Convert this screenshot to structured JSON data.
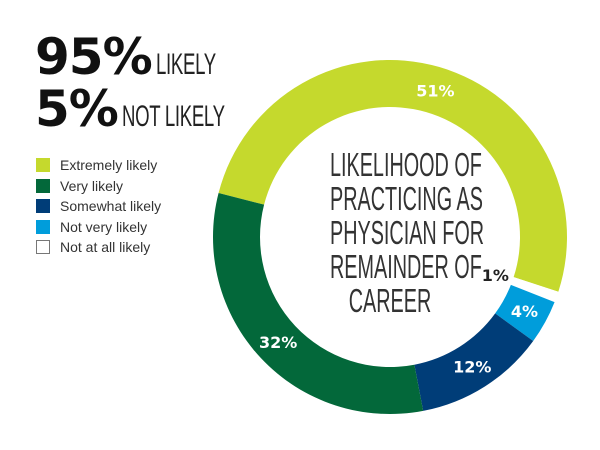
{
  "headline": {
    "likely_pct": "95%",
    "likely_label": "LIKELY",
    "not_likely_pct": "5%",
    "not_likely_label": "NOT LIKELY"
  },
  "chart_data": {
    "type": "pie",
    "donut": true,
    "title": [
      "LIKELIHOOD OF",
      "PRACTICING AS",
      "PHYSICIAN FOR",
      "REMAINDER OF",
      "CAREER"
    ],
    "legend_placement": "left",
    "categories": [
      "Extremely likely",
      "Very likely",
      "Somewhat likely",
      "Not very likely",
      "Not at all likely"
    ],
    "values": [
      51,
      32,
      12,
      4,
      1
    ],
    "data_labels": [
      "51%",
      "32%",
      "12%",
      "4%",
      "1%"
    ],
    "colors": [
      "#c5d92d",
      "#03683a",
      "#003d78",
      "#009ddb",
      "#ffffff"
    ],
    "clockwise_order": [
      0,
      4,
      3,
      2,
      1
    ]
  }
}
